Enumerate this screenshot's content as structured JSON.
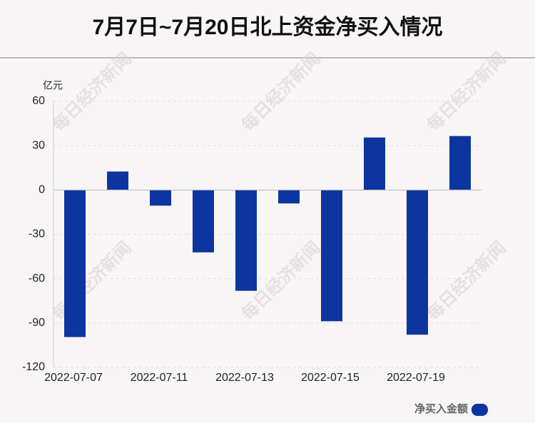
{
  "chart_data": {
    "type": "bar",
    "title": "7月7日~7月20日北上资金净买入情况",
    "y_unit": "亿元",
    "categories": [
      "2022-07-07",
      null,
      "2022-07-11",
      null,
      "2022-07-13",
      null,
      "2022-07-15",
      null,
      "2022-07-19",
      null
    ],
    "series": [
      {
        "name": "净买入金额",
        "color": "#0d35a0",
        "values": [
          -99.5,
          12.5,
          -10.6,
          -42.2,
          -68.2,
          -9.1,
          -88.8,
          35.5,
          -97.9,
          36.5
        ]
      }
    ],
    "ylim": [
      -120,
      60
    ],
    "yticks": [
      -120,
      -90,
      -60,
      -30,
      0,
      30,
      60
    ],
    "grid": true,
    "watermark": "每日经济新闻"
  }
}
